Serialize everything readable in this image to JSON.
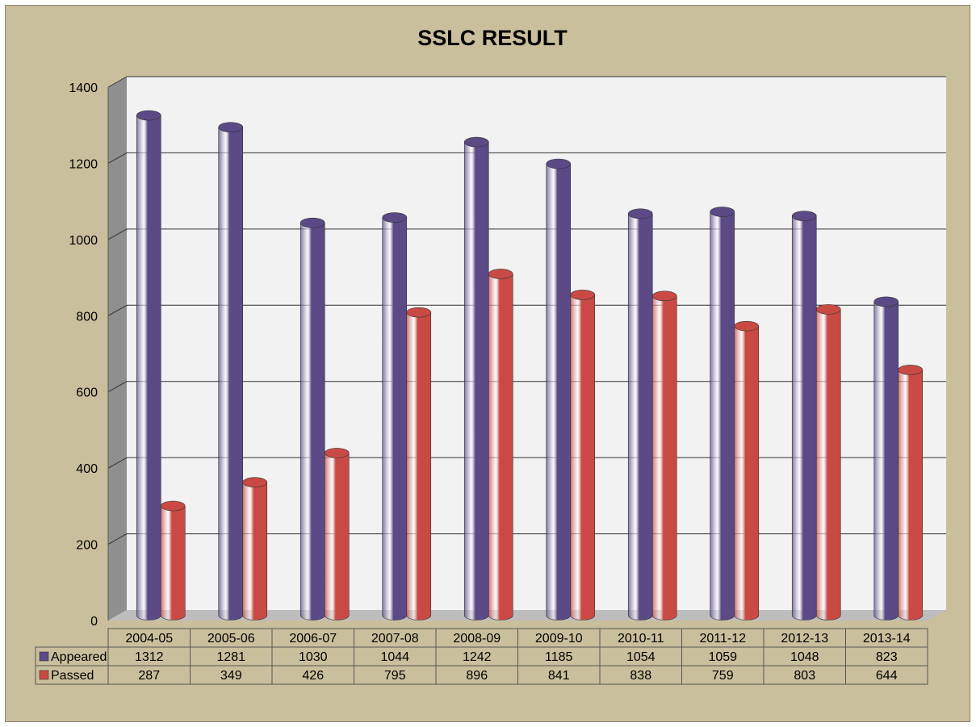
{
  "chart_data": {
    "type": "bar",
    "title": "SSLC RESULT",
    "categories": [
      "2004-05",
      "2005-06",
      "2006-07",
      "2007-08",
      "2008-09",
      "2009-10",
      "2010-11",
      "2011-12",
      "2012-13",
      "2013-14"
    ],
    "series": [
      {
        "name": "Appeared",
        "values": [
          1312,
          1281,
          1030,
          1044,
          1242,
          1185,
          1054,
          1059,
          1048,
          823
        ],
        "color": "#5b4a86"
      },
      {
        "name": "Passed",
        "values": [
          287,
          349,
          426,
          795,
          896,
          841,
          838,
          759,
          803,
          644
        ],
        "color": "#c94a44"
      }
    ],
    "ylim": [
      0,
      1400
    ],
    "yticks": [
      0,
      200,
      400,
      600,
      800,
      1000,
      1200,
      1400
    ],
    "grid": true,
    "legend": "data-table-below",
    "background_color": "#c9bf9c",
    "plot_color": "#f2f2f2"
  }
}
